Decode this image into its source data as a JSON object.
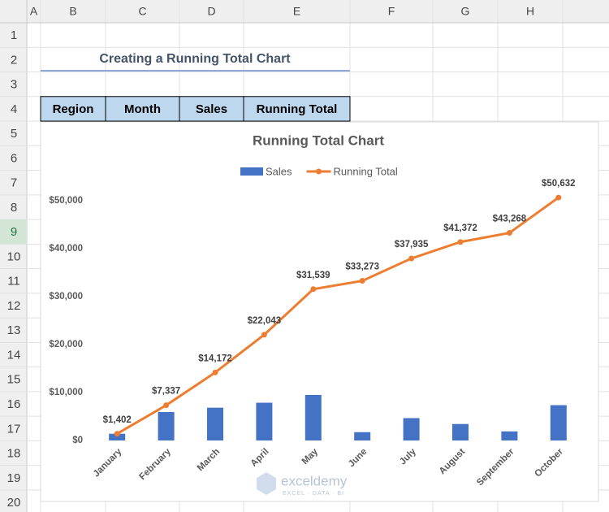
{
  "sheet": {
    "columns": [
      "A",
      "B",
      "C",
      "D",
      "E",
      "F",
      "G",
      "H"
    ],
    "rows": [
      1,
      2,
      3,
      4,
      5,
      6,
      7,
      8,
      9,
      10,
      11,
      12,
      13,
      14,
      15,
      16,
      17,
      18,
      19,
      20
    ],
    "heading": "Creating a Running Total Chart",
    "table_headers": [
      "Region",
      "Month",
      "Sales",
      "Running Total"
    ],
    "watermark": {
      "name": "exceldemy",
      "tagline": "EXCEL · DATA · BI"
    }
  },
  "chart_data": {
    "type": "bar-line",
    "title": "Running Total Chart",
    "categories": [
      "January",
      "February",
      "March",
      "April",
      "May",
      "June",
      "July",
      "August",
      "September",
      "October"
    ],
    "series": [
      {
        "name": "Sales",
        "type": "bar",
        "color": "#4472c4",
        "values": [
          1402,
          5935,
          6835,
          7871,
          9496,
          1734,
          4662,
          3437,
          1896,
          7364
        ]
      },
      {
        "name": "Running Total",
        "type": "line",
        "color": "#ed7d31",
        "values": [
          1402,
          7337,
          14172,
          22043,
          31539,
          33273,
          37935,
          41372,
          43268,
          50632
        ],
        "value_labels": [
          "$1,402",
          "$7,337",
          "$14,172",
          "$22,043",
          "$31,539",
          "$33,273",
          "$37,935",
          "$41,372",
          "$43,268",
          "$50,632"
        ]
      }
    ],
    "ylim": [
      0,
      52000
    ],
    "yticks": [
      {
        "value": 0,
        "label": "$0"
      },
      {
        "value": 10000,
        "label": "$10,000"
      },
      {
        "value": 20000,
        "label": "$20,000"
      },
      {
        "value": 30000,
        "label": "$30,000"
      },
      {
        "value": 40000,
        "label": "$40,000"
      },
      {
        "value": 50000,
        "label": "$50,000"
      }
    ],
    "grid": false,
    "legend": "top"
  }
}
